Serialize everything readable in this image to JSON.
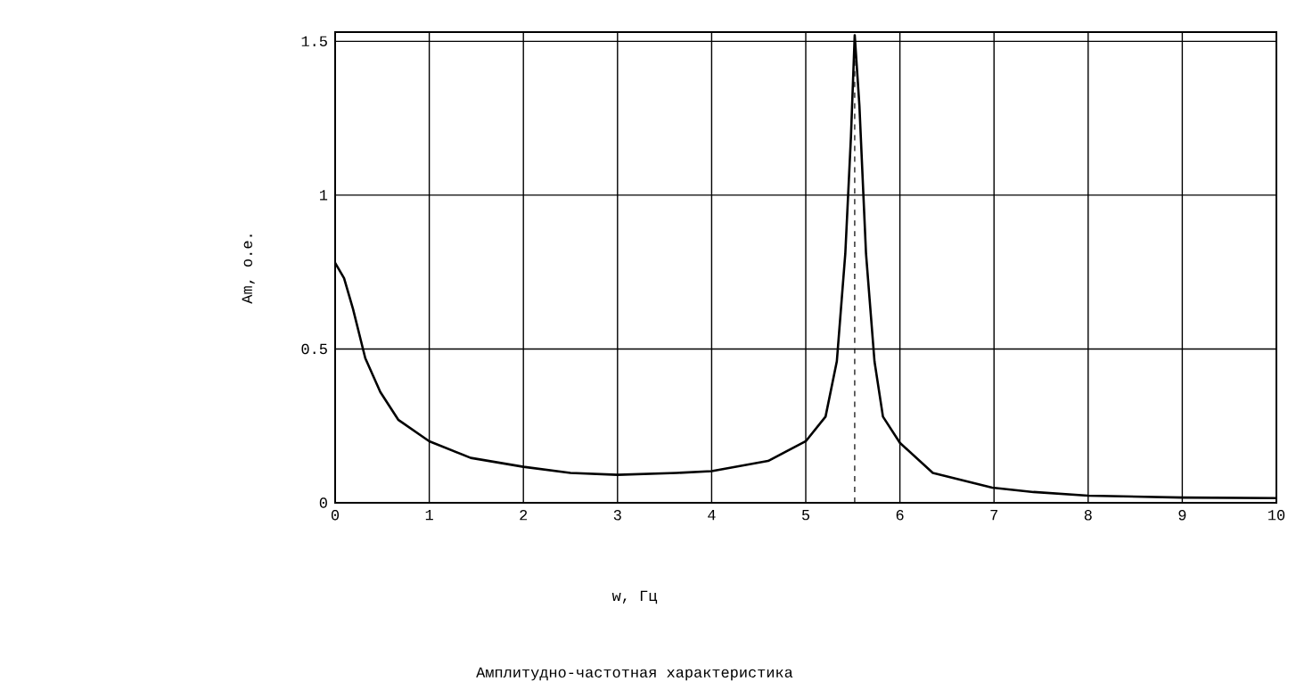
{
  "chart_data": {
    "type": "line",
    "title": "Амплитудно-частотная характеристика",
    "xlabel": "w, Гц",
    "ylabel": "Am, о.е.",
    "series": [
      {
        "color": "#000000",
        "x": [
          0,
          0.095,
          0.19,
          0.32,
          0.48,
          0.67,
          1.0,
          1.44,
          2.0,
          2.5,
          3.0,
          3.63,
          4.0,
          4.6,
          5.0,
          5.21,
          5.33,
          5.42,
          5.48,
          5.52,
          5.57,
          5.64,
          5.73,
          5.82,
          6.0,
          6.35,
          6.98,
          7.42,
          8.0,
          9.0,
          10.0
        ],
        "values": [
          0.78,
          0.73,
          0.63,
          0.47,
          0.36,
          0.27,
          0.2,
          0.146,
          0.117,
          0.097,
          0.091,
          0.097,
          0.103,
          0.136,
          0.2,
          0.28,
          0.46,
          0.81,
          1.19,
          1.52,
          1.29,
          0.81,
          0.46,
          0.28,
          0.195,
          0.097,
          0.049,
          0.035,
          0.023,
          0.017,
          0.015
        ]
      }
    ],
    "xlim": [
      0,
      10
    ],
    "ylim": [
      0,
      1.53
    ],
    "xticks": [
      0,
      1,
      2,
      3,
      4,
      5,
      6,
      7,
      8,
      9,
      10
    ],
    "yticks": [
      0,
      0.5,
      1,
      1.5
    ],
    "grid": true,
    "line_style": "solid",
    "marker": "none",
    "ref_lines": [
      {
        "axis": "x",
        "value": 5.52,
        "line_style": "dashed",
        "color": "#000000"
      }
    ]
  }
}
